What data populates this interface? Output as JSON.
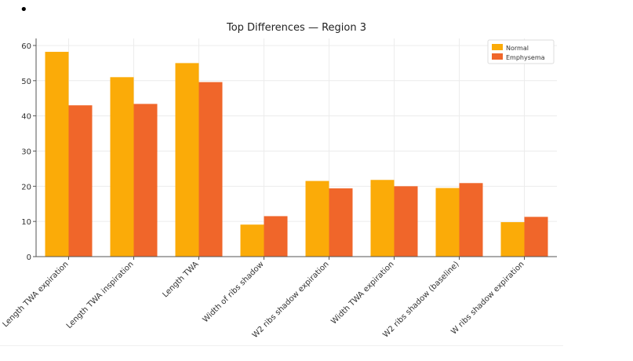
{
  "bullet": "•",
  "chart_data": {
    "type": "bar",
    "title": "Top Differences — Region 3",
    "xlabel": "",
    "ylabel": "",
    "ylim": [
      0,
      62
    ],
    "yticks": [
      0,
      10,
      20,
      30,
      40,
      50,
      60
    ],
    "grid": true,
    "legend_position": "top-right",
    "categories": [
      "Length TWA expiration",
      "Length TWA inspiration",
      "Length TWA",
      "Width of ribs shadow",
      "W2 ribs shadow expiration",
      "Width TWA expiration",
      "W2 ribs shadow (baseline)",
      "W ribs shadow expiration"
    ],
    "series": [
      {
        "name": "Normal",
        "color": "#fbab08",
        "values": [
          58.2,
          51.0,
          55.0,
          9.1,
          21.5,
          21.8,
          19.5,
          9.8
        ]
      },
      {
        "name": "Emphysema",
        "color": "#f0662a",
        "values": [
          43.0,
          43.4,
          49.6,
          11.5,
          19.4,
          20.0,
          20.9,
          11.3
        ]
      }
    ]
  }
}
